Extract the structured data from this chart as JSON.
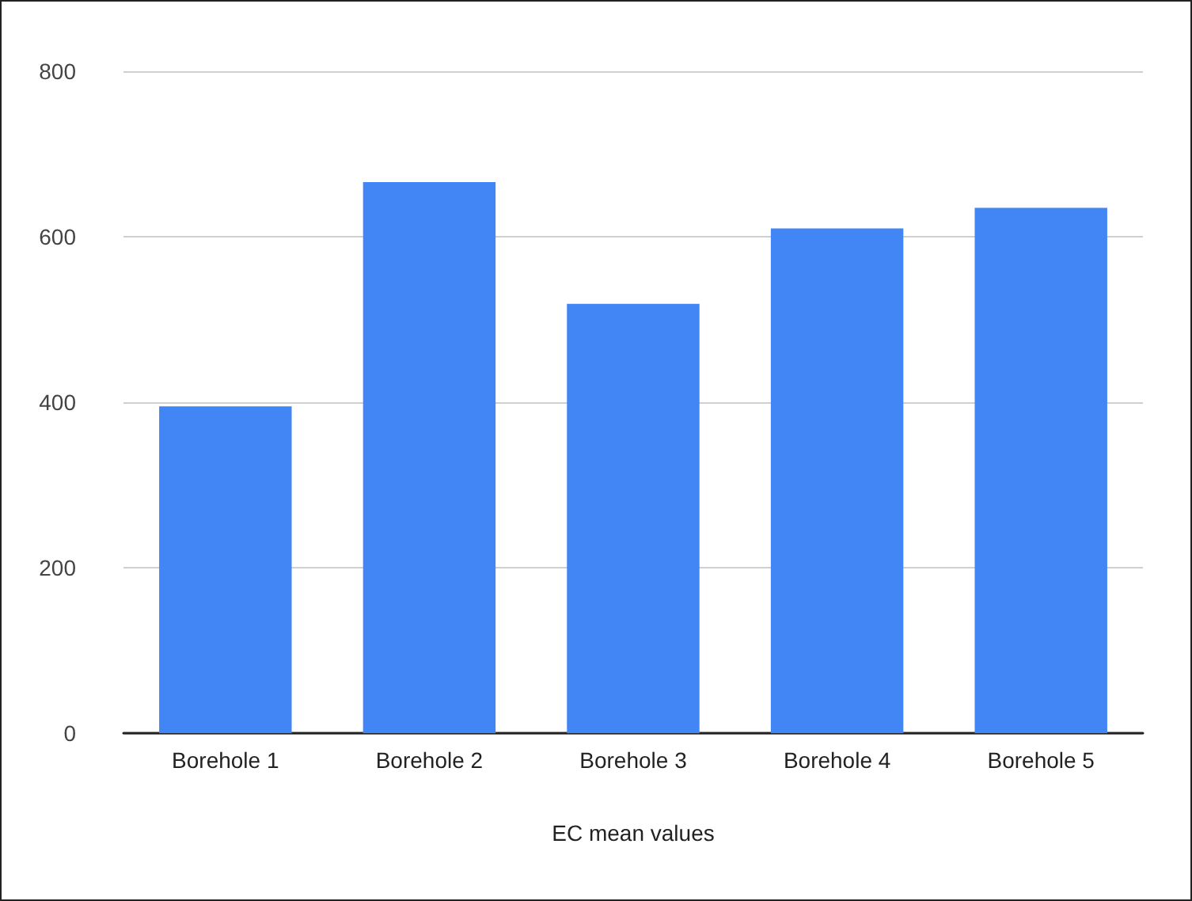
{
  "chart_data": {
    "type": "bar",
    "xlabel": "EC mean values",
    "categories": [
      "Borehole 1",
      "Borehole 2",
      "Borehole 3",
      "Borehole 4",
      "Borehole 5"
    ],
    "values": [
      395,
      666,
      519,
      610,
      635
    ],
    "color": "#4285f4",
    "ylim": [
      0,
      800
    ],
    "yticks": [
      0,
      200,
      400,
      600,
      800
    ],
    "grid": "y"
  }
}
